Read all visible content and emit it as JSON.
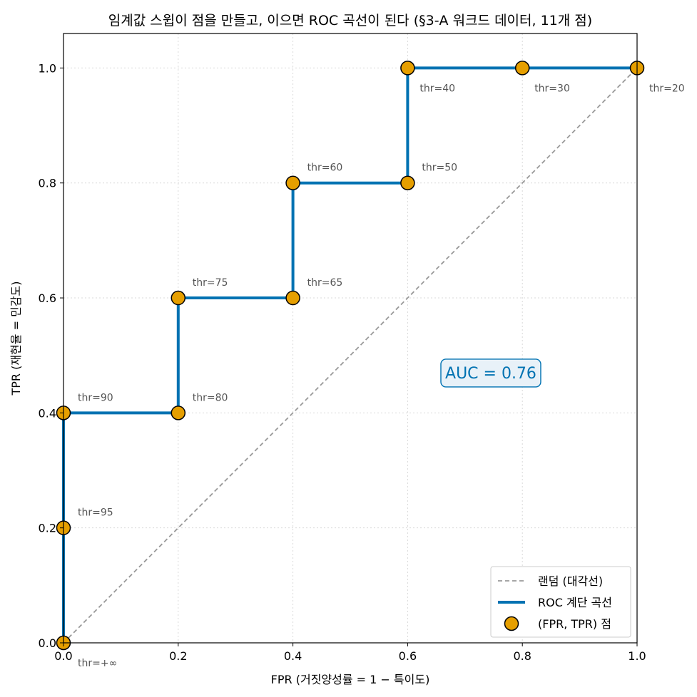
{
  "chart_data": {
    "type": "line",
    "title": "임계값 스윕이 점을 만들고, 이으면 ROC 곡선이 된다  (§3-A 워크드 데이터, 11개 점)",
    "xlabel": "FPR (거짓양성률 = 1 − 특이도)",
    "ylabel": "TPR (재현율 = 민감도)",
    "xlim": [
      0,
      1
    ],
    "ylim": [
      0,
      1.06
    ],
    "x_ticks": [
      "0.0",
      "0.2",
      "0.4",
      "0.6",
      "0.8",
      "1.0"
    ],
    "y_ticks": [
      "0.0",
      "0.2",
      "0.4",
      "0.6",
      "0.8",
      "1.0"
    ],
    "grid": true,
    "legend_position": "bottom-right",
    "points": [
      {
        "fpr": 0.0,
        "tpr": 0.0,
        "label": "thr=+∞"
      },
      {
        "fpr": 0.0,
        "tpr": 0.2,
        "label": "thr=95"
      },
      {
        "fpr": 0.0,
        "tpr": 0.4,
        "label": "thr=90"
      },
      {
        "fpr": 0.2,
        "tpr": 0.4,
        "label": "thr=80"
      },
      {
        "fpr": 0.2,
        "tpr": 0.6,
        "label": "thr=75"
      },
      {
        "fpr": 0.4,
        "tpr": 0.6,
        "label": "thr=65"
      },
      {
        "fpr": 0.4,
        "tpr": 0.8,
        "label": "thr=60"
      },
      {
        "fpr": 0.6,
        "tpr": 0.8,
        "label": "thr=50"
      },
      {
        "fpr": 0.6,
        "tpr": 1.0,
        "label": "thr=40"
      },
      {
        "fpr": 0.8,
        "tpr": 1.0,
        "label": "thr=30"
      },
      {
        "fpr": 1.0,
        "tpr": 1.0,
        "label": "thr=20"
      }
    ],
    "series": [
      {
        "name": "랜덤 (대각선)",
        "x": [
          0,
          1
        ],
        "y": [
          0,
          1
        ],
        "color": "#999999",
        "style": "dashed"
      },
      {
        "name": "ROC 계단 곡선",
        "x": [
          0.0,
          0.0,
          0.0,
          0.2,
          0.2,
          0.4,
          0.4,
          0.6,
          0.6,
          0.8,
          1.0
        ],
        "y": [
          0.0,
          0.2,
          0.4,
          0.4,
          0.6,
          0.6,
          0.8,
          0.8,
          1.0,
          1.0,
          1.0
        ],
        "color": "#0072B2",
        "style": "solid"
      },
      {
        "name": "(FPR, TPR) 점",
        "color": "#E69F00",
        "style": "markers"
      }
    ],
    "annotation": {
      "text": "AUC = 0.76",
      "x": 0.745,
      "y": 0.47,
      "color": "#0072B2",
      "background": "#E8F1F8"
    }
  }
}
